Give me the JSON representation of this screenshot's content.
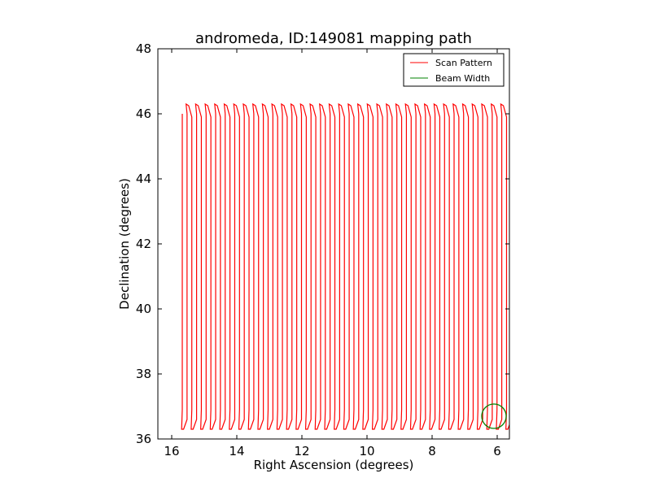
{
  "chart_data": {
    "type": "line",
    "title": "andromeda, ID:149081 mapping path",
    "xlabel": "Right Ascension (degrees)",
    "ylabel": "Declination (degrees)",
    "xlim": [
      16.425,
      5.625
    ],
    "ylim": [
      36,
      48
    ],
    "xticks": [
      16,
      14,
      12,
      10,
      8,
      6
    ],
    "yticks": [
      36,
      38,
      40,
      42,
      44,
      46,
      48
    ],
    "legend_position": "top-right",
    "series": [
      {
        "name": "Scan Pattern",
        "color": "#ff0000",
        "kind": "raster",
        "ra_start": 15.675,
        "ra_step": 0.1465,
        "n_columns": 69,
        "dec_start": 46.0,
        "dec_top": 46.3,
        "dec_bottom": 36.3
      },
      {
        "name": "Beam Width",
        "color": "#008000",
        "kind": "circle",
        "center_ra": 6.1,
        "center_dec": 36.7,
        "radius_deg": 0.375
      }
    ]
  }
}
